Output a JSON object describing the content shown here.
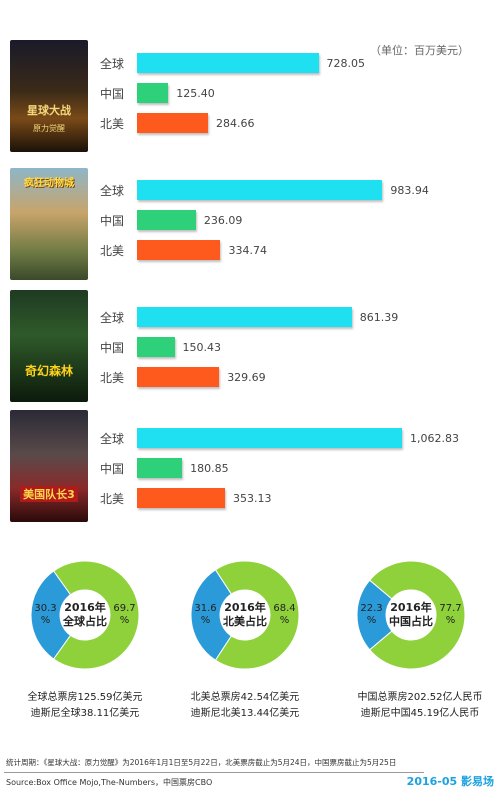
{
  "unit_label": "（单位：百万美元）",
  "colors": {
    "global": "#1ee0f0",
    "china": "#2ed07a",
    "north_america": "#ff5a1e",
    "share_studio": "#2a9ad8",
    "share_other": "#8fd13a"
  },
  "posters": [
    {
      "title": "星球大战",
      "subtitle": "原力觉醒"
    },
    {
      "title": "疯狂动物城",
      "subtitle": ""
    },
    {
      "title": "奇幻森林",
      "subtitle": ""
    },
    {
      "title": "美国队长3",
      "subtitle": ""
    }
  ],
  "chart_data": [
    {
      "type": "bar",
      "categories": [
        "全球",
        "中国",
        "北美"
      ],
      "values": [
        728.05,
        125.4,
        284.66
      ],
      "value_labels": [
        "728.05",
        "125.40",
        "284.66"
      ],
      "xlim": [
        0,
        1250
      ]
    },
    {
      "type": "bar",
      "categories": [
        "全球",
        "中国",
        "北美"
      ],
      "values": [
        983.94,
        236.09,
        334.74
      ],
      "value_labels": [
        "983.94",
        "236.09",
        "334.74"
      ],
      "xlim": [
        0,
        1250
      ]
    },
    {
      "type": "bar",
      "categories": [
        "全球",
        "中国",
        "北美"
      ],
      "values": [
        861.39,
        150.43,
        329.69
      ],
      "value_labels": [
        "861.39",
        "150.43",
        "329.69"
      ],
      "xlim": [
        0,
        1250
      ]
    },
    {
      "type": "bar",
      "categories": [
        "全球",
        "中国",
        "北美"
      ],
      "values": [
        1062.83,
        180.85,
        353.13
      ],
      "value_labels": [
        "1,062.83",
        "180.85",
        "353.13"
      ],
      "xlim": [
        0,
        1250
      ]
    },
    {
      "type": "pie",
      "title": "2016年\n全球占比",
      "values": [
        30.3,
        69.7
      ],
      "labels": [
        "30.3\n%",
        "69.7\n%"
      ],
      "caption": [
        "全球总票房125.59亿美元",
        "迪斯尼全球38.11亿美元"
      ]
    },
    {
      "type": "pie",
      "title": "2016年\n北美占比",
      "values": [
        31.6,
        68.4
      ],
      "labels": [
        "31.6\n%",
        "68.4\n%"
      ],
      "caption": [
        "北美总票房42.54亿美元",
        "迪斯尼北美13.44亿美元"
      ]
    },
    {
      "type": "pie",
      "title": "2016年\n中国占比",
      "values": [
        22.3,
        77.7
      ],
      "labels": [
        "22.3\n%",
        "77.7\n%"
      ],
      "caption": [
        "中国总票房202.52亿人民币",
        "迪斯尼中国45.19亿人民币"
      ]
    }
  ],
  "footnote": "统计周期：《星球大战：原力觉醒》为2016年1月1日至5月22日，北美票房截止为5月24日，中国票房截止为5月25日",
  "source": "Source:Box Office Mojo,The-Numbers，中国票房CBO",
  "brand": "2016-05 影易场"
}
